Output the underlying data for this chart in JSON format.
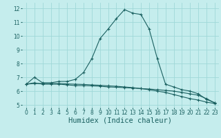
{
  "xlabel": "Humidex (Indice chaleur)",
  "xlim": [
    -0.5,
    23.5
  ],
  "ylim": [
    4.8,
    12.4
  ],
  "yticks": [
    5,
    6,
    7,
    8,
    9,
    10,
    11,
    12
  ],
  "xticks": [
    0,
    1,
    2,
    3,
    4,
    5,
    6,
    7,
    8,
    9,
    10,
    11,
    12,
    13,
    14,
    15,
    16,
    17,
    18,
    19,
    20,
    21,
    22,
    23
  ],
  "background_color": "#c5eded",
  "grid_color": "#9fd8d8",
  "line_color": "#1a6060",
  "line1_x": [
    0,
    1,
    2,
    3,
    4,
    5,
    6,
    7,
    8,
    9,
    10,
    11,
    12,
    13,
    14,
    15,
    16,
    17,
    18,
    19,
    20,
    21,
    22,
    23
  ],
  "line1_y": [
    6.5,
    7.0,
    6.6,
    6.6,
    6.7,
    6.7,
    6.85,
    7.35,
    8.35,
    9.8,
    10.5,
    11.25,
    11.9,
    11.65,
    11.55,
    10.5,
    8.35,
    6.5,
    6.3,
    6.1,
    6.0,
    5.8,
    5.4,
    5.15
  ],
  "line2_x": [
    0,
    1,
    2,
    3,
    4,
    5,
    6,
    7,
    8,
    9,
    10,
    11,
    12,
    13,
    14,
    15,
    16,
    17,
    18,
    19,
    20,
    21,
    22,
    23
  ],
  "line2_y": [
    6.5,
    6.6,
    6.5,
    6.5,
    6.5,
    6.45,
    6.4,
    6.4,
    6.38,
    6.35,
    6.3,
    6.28,
    6.25,
    6.22,
    6.18,
    6.15,
    6.1,
    6.05,
    6.0,
    5.9,
    5.8,
    5.7,
    5.45,
    5.15
  ],
  "line3_x": [
    0,
    1,
    2,
    3,
    4,
    5,
    6,
    7,
    8,
    9,
    10,
    11,
    12,
    13,
    14,
    15,
    16,
    17,
    18,
    19,
    20,
    21,
    22,
    23
  ],
  "line3_y": [
    6.5,
    6.55,
    6.55,
    6.55,
    6.55,
    6.52,
    6.5,
    6.48,
    6.45,
    6.42,
    6.38,
    6.35,
    6.3,
    6.25,
    6.18,
    6.1,
    6.0,
    5.9,
    5.75,
    5.6,
    5.45,
    5.35,
    5.2,
    5.1
  ],
  "marker": "+",
  "markersize": 3,
  "markeredgewidth": 0.8,
  "linewidth": 0.8,
  "tick_fontsize": 5.5,
  "xlabel_fontsize": 7.5
}
